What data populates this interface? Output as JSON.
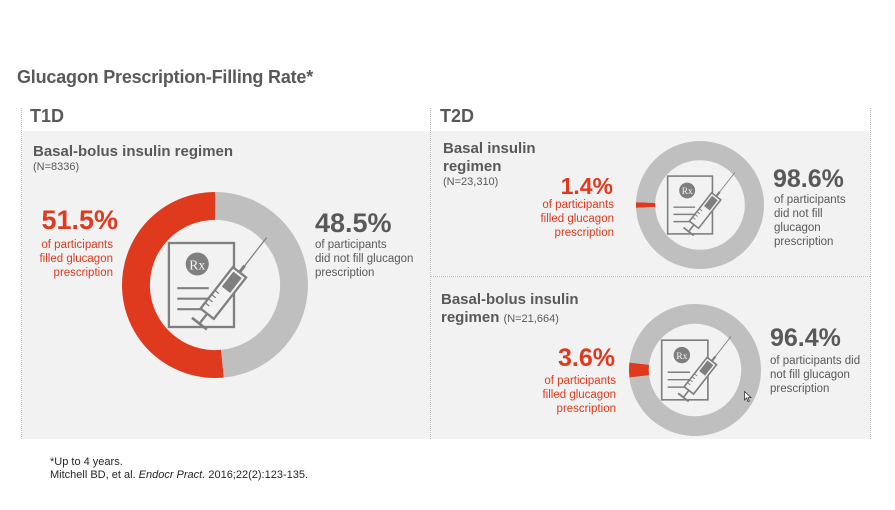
{
  "title": "Glucagon Prescription-Filling Rate*",
  "columns": {
    "t1d": "T1D",
    "t2d": "T2D"
  },
  "panels": [
    {
      "group": "T1D",
      "regimen": "Basal-bolus insulin regimen",
      "n": "(N=8336)",
      "filled_pct": "51.5%",
      "filled_desc": [
        "of participants",
        "filled glucagon",
        "prescription"
      ],
      "not_filled_pct": "48.5%",
      "not_filled_desc": [
        "of participants",
        "did not fill glucagon",
        "prescription"
      ]
    },
    {
      "group": "T2D",
      "regimen_line1": "Basal insulin",
      "regimen_line2": "regimen",
      "n": "(N=23,310)",
      "filled_pct": "1.4%",
      "filled_desc": [
        "of participants",
        "filled glucagon",
        "prescription"
      ],
      "not_filled_pct": "98.6%",
      "not_filled_desc": [
        "of participants",
        "did not fill",
        "glucagon",
        "prescription"
      ]
    },
    {
      "group": "T2D",
      "regimen_line1": "Basal-bolus insulin",
      "regimen_line2": "regimen",
      "n": "(N=21,664)",
      "filled_pct": "3.6%",
      "filled_desc": [
        "of participants",
        "filled glucagon",
        "prescription"
      ],
      "not_filled_pct": "96.4%",
      "not_filled_desc": [
        "of participants did",
        "not fill glucagon",
        "prescription"
      ]
    }
  ],
  "icon": "prescription-syringe-icon",
  "rx_label": "Rx",
  "footnote": {
    "note": "*Up to 4 years.",
    "citation_authors": "Mitchell BD, et al. ",
    "citation_journal": "Endocr Pract.",
    "citation_rest": " 2016;22(2):123-135."
  },
  "colors": {
    "filled": "#e03a1e",
    "not_filled": "#bfbfbf",
    "panel_bg": "#f2f2f2",
    "text": "#595959"
  },
  "chart_data": [
    {
      "type": "pie",
      "title": "T1D – Basal-bolus insulin regimen (N=8336)",
      "categories": [
        "Filled glucagon prescription",
        "Did not fill glucagon prescription"
      ],
      "values": [
        51.5,
        48.5
      ],
      "unit": "%"
    },
    {
      "type": "pie",
      "title": "T2D – Basal insulin regimen (N=23,310)",
      "categories": [
        "Filled glucagon prescription",
        "Did not fill glucagon prescription"
      ],
      "values": [
        1.4,
        98.6
      ],
      "unit": "%"
    },
    {
      "type": "pie",
      "title": "T2D – Basal-bolus insulin regimen (N=21,664)",
      "categories": [
        "Filled glucagon prescription",
        "Did not fill glucagon prescription"
      ],
      "values": [
        3.6,
        96.4
      ],
      "unit": "%"
    }
  ]
}
